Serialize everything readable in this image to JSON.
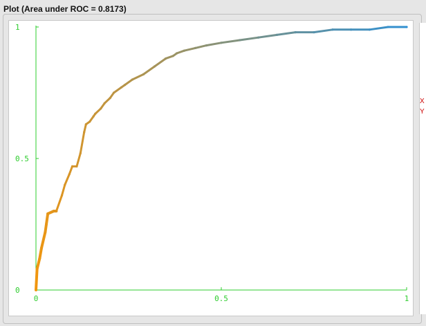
{
  "window": {
    "title": "Plot (Area under ROC = 0.8173)"
  },
  "colors": {
    "background": "#e6e6e6",
    "plot_background": "#ffffff",
    "axis": "#2ecc2e",
    "curve_start": "#f0960f",
    "curve_end": "#2b8fd6",
    "clipped_mark": "#cc0000"
  },
  "side_panel": {
    "mark_1": "X",
    "mark_2": "Y"
  },
  "chart_data": {
    "type": "line",
    "title": "Plot (Area under ROC = 0.8173)",
    "xlabel": "",
    "ylabel": "",
    "xlim": [
      0,
      1
    ],
    "ylim": [
      0,
      1
    ],
    "x_ticks": [
      "0",
      "0.5",
      "1"
    ],
    "y_ticks": [
      "0",
      "0.5",
      "1"
    ],
    "grid": false,
    "legend": "none",
    "series": [
      {
        "x": [
          0.0,
          0.003,
          0.01,
          0.015,
          0.025,
          0.028,
          0.032,
          0.048,
          0.055,
          0.07,
          0.078,
          0.09,
          0.098,
          0.11,
          0.12,
          0.13,
          0.135,
          0.145,
          0.155,
          0.16,
          0.175,
          0.185,
          0.2,
          0.21,
          0.23,
          0.24,
          0.26,
          0.29,
          0.32,
          0.35,
          0.37,
          0.38,
          0.4,
          0.43,
          0.46,
          0.5,
          0.55,
          0.6,
          0.65,
          0.7,
          0.75,
          0.8,
          0.85,
          0.9,
          0.95,
          1.0
        ],
        "y": [
          0.0,
          0.08,
          0.12,
          0.16,
          0.22,
          0.25,
          0.29,
          0.3,
          0.3,
          0.36,
          0.4,
          0.44,
          0.47,
          0.47,
          0.52,
          0.6,
          0.63,
          0.64,
          0.66,
          0.67,
          0.69,
          0.71,
          0.73,
          0.75,
          0.77,
          0.78,
          0.8,
          0.82,
          0.85,
          0.88,
          0.89,
          0.9,
          0.91,
          0.92,
          0.93,
          0.94,
          0.95,
          0.96,
          0.97,
          0.98,
          0.98,
          0.99,
          0.99,
          0.99,
          1.0,
          1.0
        ]
      }
    ]
  }
}
